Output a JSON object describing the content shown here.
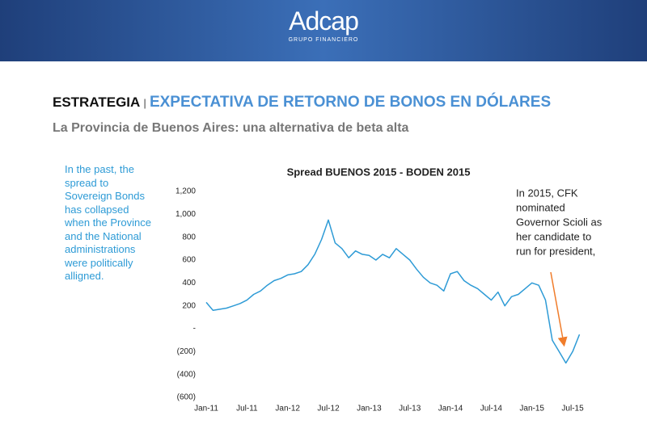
{
  "header": {
    "logo": "Adcap",
    "logo_sub": "GRUPO FINANCIERO"
  },
  "heading": {
    "section": "ESTRATEGIA",
    "separator": "|",
    "title": "EXPECTATIVA DE RETORNO DE BONOS EN DÓLARES",
    "subtitle": "La Provincia de Buenos Aires: una alternativa de beta alta"
  },
  "note": [
    "In the past, the",
    "spread to",
    "Sovereign Bonds",
    "has collapsed",
    "when the Province",
    "and the National",
    "administrations",
    "were politically",
    "alligned."
  ],
  "chart_data": {
    "type": "line",
    "title": "Spread BUENOS 2015 - BODEN 2015",
    "categories": [
      "Jan-11",
      null,
      null,
      null,
      null,
      null,
      "Jul-11",
      null,
      null,
      null,
      null,
      null,
      "Jan-12",
      null,
      null,
      null,
      null,
      null,
      "Jul-12",
      null,
      null,
      null,
      null,
      null,
      "Jan-13",
      null,
      null,
      null,
      null,
      null,
      "Jul-13",
      null,
      null,
      null,
      null,
      null,
      "Jan-14",
      null,
      null,
      null,
      null,
      null,
      "Jul-14",
      null,
      null,
      null,
      null,
      null,
      "Jan-15",
      null,
      null,
      null,
      null,
      null,
      "Jul-15",
      null
    ],
    "values": [
      230,
      160,
      170,
      180,
      200,
      220,
      250,
      300,
      330,
      380,
      420,
      440,
      470,
      480,
      500,
      560,
      650,
      780,
      950,
      750,
      700,
      620,
      680,
      650,
      640,
      600,
      650,
      620,
      700,
      650,
      600,
      520,
      450,
      400,
      380,
      330,
      480,
      500,
      420,
      380,
      350,
      300,
      250,
      320,
      200,
      280,
      300,
      350,
      400,
      380,
      250,
      -100,
      -200,
      -300,
      -200,
      -50
    ],
    "color": "#2e9bd6",
    "ylim": [
      -600,
      1200
    ],
    "yticks": [
      {
        "value": -600,
        "label": "(600)"
      },
      {
        "value": -400,
        "label": "(400)"
      },
      {
        "value": -200,
        "label": "(200)"
      },
      {
        "value": 0,
        "label": "-"
      },
      200,
      400,
      600,
      800,
      {
        "value": 1000,
        "label": "1,000"
      },
      {
        "value": 1200,
        "label": "1,200"
      }
    ],
    "annotation": [
      "In 2015, CFK",
      "nominated",
      "Governor Scioli as",
      "her candidate to",
      "run for president,"
    ],
    "annotation_color": "#f07c2a"
  }
}
